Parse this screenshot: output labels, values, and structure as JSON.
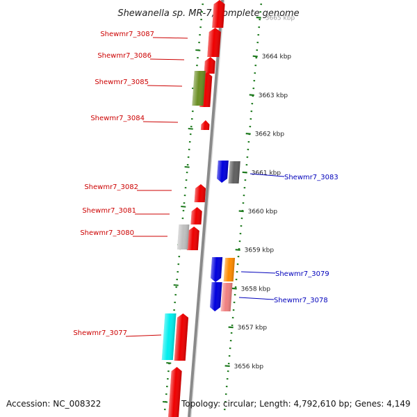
{
  "title": "Shewanella sp. MR-7, complete genome",
  "footer": {
    "accession": "Accession: NC_008322",
    "topology": "Topology: circular; Length: 4,792,610 bp; Genes: 4,149"
  },
  "colors": {
    "backbone": "#8a8a8a",
    "ticks": "#1e7a1e",
    "left_label": "#cc0000",
    "right_label": "#0000bb",
    "scale_text": "#222222"
  },
  "scale": [
    {
      "label": "3665 kbp",
      "kbp": 3665
    },
    {
      "label": "3664 kbp",
      "kbp": 3664
    },
    {
      "label": "3663 kbp",
      "kbp": 3663
    },
    {
      "label": "3662 kbp",
      "kbp": 3662
    },
    {
      "label": "3661 kbp",
      "kbp": 3661
    },
    {
      "label": "3660 kbp",
      "kbp": 3660
    },
    {
      "label": "3659 kbp",
      "kbp": 3659
    },
    {
      "label": "3658 kbp",
      "kbp": 3658
    },
    {
      "label": "3657 kbp",
      "kbp": 3657
    },
    {
      "label": "3656 kbp",
      "kbp": 3656
    }
  ],
  "genes": [
    {
      "label": "Shewmr7_3087",
      "side": "left"
    },
    {
      "label": "Shewmr7_3086",
      "side": "left"
    },
    {
      "label": "Shewmr7_3085",
      "side": "left"
    },
    {
      "label": "Shewmr7_3084",
      "side": "left"
    },
    {
      "label": "Shewmr7_3083",
      "side": "right"
    },
    {
      "label": "Shewmr7_3082",
      "side": "left"
    },
    {
      "label": "Shewmr7_3081",
      "side": "left"
    },
    {
      "label": "Shewmr7_3080",
      "side": "left"
    },
    {
      "label": "Shewmr7_3079",
      "side": "right"
    },
    {
      "label": "Shewmr7_3078",
      "side": "right"
    },
    {
      "label": "Shewmr7_3077",
      "side": "left"
    }
  ],
  "features": [
    {
      "name": "gene-red",
      "color": "#ee0000"
    },
    {
      "name": "gene-olive",
      "color": "#6b8e23"
    },
    {
      "name": "gene-blue",
      "color": "#0000dd"
    },
    {
      "name": "gene-gray",
      "color": "#606060"
    },
    {
      "name": "gene-lightgray",
      "color": "#c0c0c0"
    },
    {
      "name": "gene-orange",
      "color": "#ff8c00"
    },
    {
      "name": "gene-pink",
      "color": "#f08080"
    },
    {
      "name": "gene-cyan",
      "color": "#00eeee"
    }
  ]
}
